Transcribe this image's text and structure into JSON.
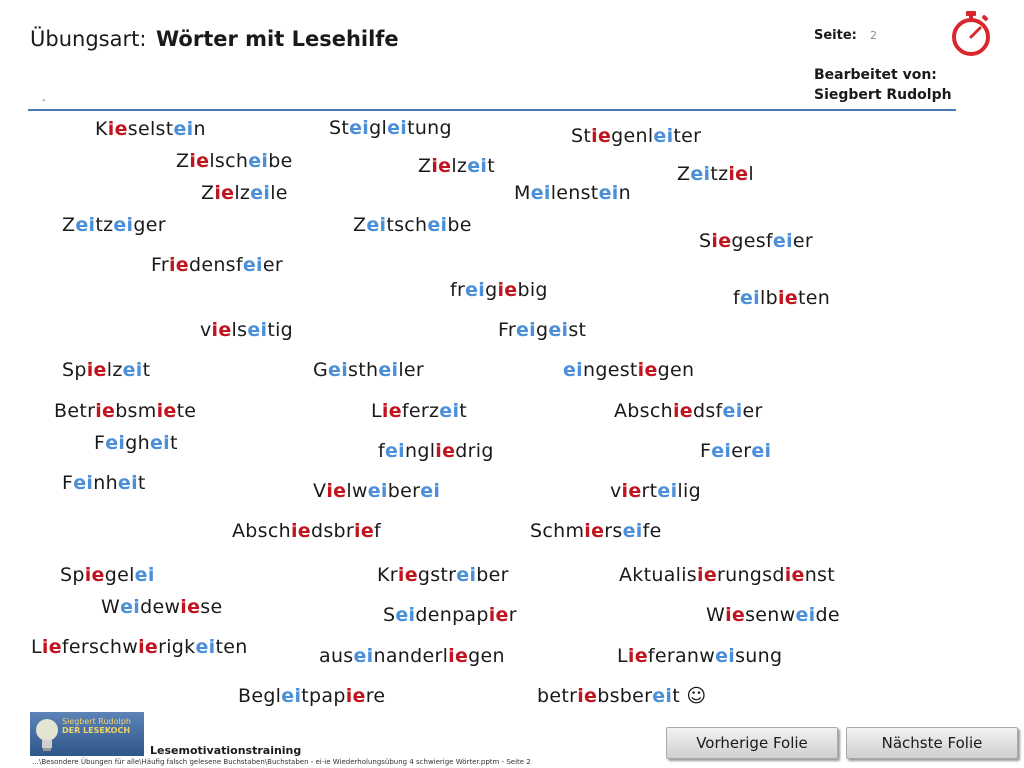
{
  "header": {
    "exercise_label": "Übungsart:",
    "exercise_value": "Wörter mit Lesehilfe",
    "page_label": "Seite:",
    "page_number": "2",
    "editor_label": "Bearbeitet von:",
    "editor_name": "Siegbert Rudolph",
    "dash": "-"
  },
  "colors": {
    "ie": "#c0141e",
    "ei": "#4a8fd8",
    "rule": "#4a79b8",
    "timer": "#d9272e"
  },
  "icons": {
    "timer": "stopwatch-icon",
    "logo": "lightbulb-logo",
    "smiley": "smiley-icon"
  },
  "words": [
    {
      "parts": [
        {
          "t": "K",
          "c": ""
        },
        {
          "t": "ie",
          "c": "ie"
        },
        {
          "t": "selst",
          "c": ""
        },
        {
          "t": "ei",
          "c": "ei"
        },
        {
          "t": "n",
          "c": ""
        }
      ]
    },
    {
      "parts": [
        {
          "t": "St",
          "c": ""
        },
        {
          "t": "ei",
          "c": "ei"
        },
        {
          "t": "gl",
          "c": ""
        },
        {
          "t": "ei",
          "c": "ei"
        },
        {
          "t": "tung",
          "c": ""
        }
      ]
    },
    {
      "parts": [
        {
          "t": "St",
          "c": ""
        },
        {
          "t": "ie",
          "c": "ie"
        },
        {
          "t": "genl",
          "c": ""
        },
        {
          "t": "ei",
          "c": "ei"
        },
        {
          "t": "ter",
          "c": ""
        }
      ]
    },
    {
      "parts": [
        {
          "t": "Z",
          "c": ""
        },
        {
          "t": "ie",
          "c": "ie"
        },
        {
          "t": "lsch",
          "c": ""
        },
        {
          "t": "ei",
          "c": "ei"
        },
        {
          "t": "be",
          "c": ""
        }
      ]
    },
    {
      "parts": [
        {
          "t": "Z",
          "c": ""
        },
        {
          "t": "ie",
          "c": "ie"
        },
        {
          "t": "lz",
          "c": ""
        },
        {
          "t": "ei",
          "c": "ei"
        },
        {
          "t": "t",
          "c": ""
        }
      ]
    },
    {
      "parts": [
        {
          "t": "Z",
          "c": ""
        },
        {
          "t": "ei",
          "c": "ei"
        },
        {
          "t": "tz",
          "c": ""
        },
        {
          "t": "ie",
          "c": "ie"
        },
        {
          "t": "l",
          "c": ""
        }
      ]
    },
    {
      "parts": [
        {
          "t": "Z",
          "c": ""
        },
        {
          "t": "ie",
          "c": "ie"
        },
        {
          "t": "lz",
          "c": ""
        },
        {
          "t": "ei",
          "c": "ei"
        },
        {
          "t": "le",
          "c": ""
        }
      ]
    },
    {
      "parts": [
        {
          "t": "M",
          "c": ""
        },
        {
          "t": "ei",
          "c": "ei"
        },
        {
          "t": "lenst",
          "c": ""
        },
        {
          "t": "ei",
          "c": "ei"
        },
        {
          "t": "n",
          "c": ""
        }
      ]
    },
    {
      "parts": [
        {
          "t": "Z",
          "c": ""
        },
        {
          "t": "ei",
          "c": "ei"
        },
        {
          "t": "tz",
          "c": ""
        },
        {
          "t": "ei",
          "c": "ei"
        },
        {
          "t": "ger",
          "c": ""
        }
      ]
    },
    {
      "parts": [
        {
          "t": "Z",
          "c": ""
        },
        {
          "t": "ei",
          "c": "ei"
        },
        {
          "t": "tsch",
          "c": ""
        },
        {
          "t": "ei",
          "c": "ei"
        },
        {
          "t": "be",
          "c": ""
        }
      ]
    },
    {
      "parts": [
        {
          "t": "S",
          "c": ""
        },
        {
          "t": "ie",
          "c": "ie"
        },
        {
          "t": "gesf",
          "c": ""
        },
        {
          "t": "ei",
          "c": "ei"
        },
        {
          "t": "er",
          "c": ""
        }
      ]
    },
    {
      "parts": [
        {
          "t": "Fr",
          "c": ""
        },
        {
          "t": "ie",
          "c": "ie"
        },
        {
          "t": "densf",
          "c": ""
        },
        {
          "t": "ei",
          "c": "ei"
        },
        {
          "t": "er",
          "c": ""
        }
      ]
    },
    {
      "parts": [
        {
          "t": "fr",
          "c": ""
        },
        {
          "t": "ei",
          "c": "ei"
        },
        {
          "t": "g",
          "c": ""
        },
        {
          "t": "ie",
          "c": "ie"
        },
        {
          "t": "big",
          "c": ""
        }
      ]
    },
    {
      "parts": [
        {
          "t": "f",
          "c": ""
        },
        {
          "t": "ei",
          "c": "ei"
        },
        {
          "t": "lb",
          "c": ""
        },
        {
          "t": "ie",
          "c": "ie"
        },
        {
          "t": "ten",
          "c": ""
        }
      ]
    },
    {
      "parts": [
        {
          "t": "v",
          "c": ""
        },
        {
          "t": "ie",
          "c": "ie"
        },
        {
          "t": "ls",
          "c": ""
        },
        {
          "t": "ei",
          "c": "ei"
        },
        {
          "t": "tig",
          "c": ""
        }
      ]
    },
    {
      "parts": [
        {
          "t": "Fr",
          "c": ""
        },
        {
          "t": "ei",
          "c": "ei"
        },
        {
          "t": "g",
          "c": ""
        },
        {
          "t": "ei",
          "c": "ei"
        },
        {
          "t": "st",
          "c": ""
        }
      ]
    },
    {
      "parts": [
        {
          "t": "Sp",
          "c": ""
        },
        {
          "t": "ie",
          "c": "ie"
        },
        {
          "t": "lz",
          "c": ""
        },
        {
          "t": "ei",
          "c": "ei"
        },
        {
          "t": "t",
          "c": ""
        }
      ]
    },
    {
      "parts": [
        {
          "t": "G",
          "c": ""
        },
        {
          "t": "ei",
          "c": "ei"
        },
        {
          "t": "sth",
          "c": ""
        },
        {
          "t": "ei",
          "c": "ei"
        },
        {
          "t": "ler",
          "c": ""
        }
      ]
    },
    {
      "parts": [
        {
          "t": "ei",
          "c": "ei"
        },
        {
          "t": "ngest",
          "c": ""
        },
        {
          "t": "ie",
          "c": "ie"
        },
        {
          "t": "gen",
          "c": ""
        }
      ]
    },
    {
      "parts": [
        {
          "t": "Betr",
          "c": ""
        },
        {
          "t": "ie",
          "c": "ie"
        },
        {
          "t": "bsm",
          "c": ""
        },
        {
          "t": "ie",
          "c": "ie"
        },
        {
          "t": "te",
          "c": ""
        }
      ]
    },
    {
      "parts": [
        {
          "t": "L",
          "c": ""
        },
        {
          "t": "ie",
          "c": "ie"
        },
        {
          "t": "ferz",
          "c": ""
        },
        {
          "t": "ei",
          "c": "ei"
        },
        {
          "t": "t",
          "c": ""
        }
      ]
    },
    {
      "parts": [
        {
          "t": "Absch",
          "c": ""
        },
        {
          "t": "ie",
          "c": "ie"
        },
        {
          "t": "dsf",
          "c": ""
        },
        {
          "t": "ei",
          "c": "ei"
        },
        {
          "t": "er",
          "c": ""
        }
      ]
    },
    {
      "parts": [
        {
          "t": "F",
          "c": ""
        },
        {
          "t": "ei",
          "c": "ei"
        },
        {
          "t": "gh",
          "c": ""
        },
        {
          "t": "ei",
          "c": "ei"
        },
        {
          "t": "t",
          "c": ""
        }
      ]
    },
    {
      "parts": [
        {
          "t": "f",
          "c": ""
        },
        {
          "t": "ei",
          "c": "ei"
        },
        {
          "t": "ngl",
          "c": ""
        },
        {
          "t": "ie",
          "c": "ie"
        },
        {
          "t": "drig",
          "c": ""
        }
      ]
    },
    {
      "parts": [
        {
          "t": "F",
          "c": ""
        },
        {
          "t": "ei",
          "c": "ei"
        },
        {
          "t": "er",
          "c": ""
        },
        {
          "t": "ei",
          "c": "ei"
        }
      ]
    },
    {
      "parts": [
        {
          "t": "F",
          "c": ""
        },
        {
          "t": "ei",
          "c": "ei"
        },
        {
          "t": "nh",
          "c": ""
        },
        {
          "t": "ei",
          "c": "ei"
        },
        {
          "t": "t",
          "c": ""
        }
      ]
    },
    {
      "parts": [
        {
          "t": "V",
          "c": ""
        },
        {
          "t": "ie",
          "c": "ie"
        },
        {
          "t": "lw",
          "c": ""
        },
        {
          "t": "ei",
          "c": "ei"
        },
        {
          "t": "ber",
          "c": ""
        },
        {
          "t": "ei",
          "c": "ei"
        }
      ]
    },
    {
      "parts": [
        {
          "t": "v",
          "c": ""
        },
        {
          "t": "ie",
          "c": "ie"
        },
        {
          "t": "rt",
          "c": ""
        },
        {
          "t": "ei",
          "c": "ei"
        },
        {
          "t": "lig",
          "c": ""
        }
      ]
    },
    {
      "parts": [
        {
          "t": "Absch",
          "c": ""
        },
        {
          "t": "ie",
          "c": "ie"
        },
        {
          "t": "dsbr",
          "c": ""
        },
        {
          "t": "ie",
          "c": "ie"
        },
        {
          "t": "f",
          "c": ""
        }
      ]
    },
    {
      "parts": [
        {
          "t": "Schm",
          "c": ""
        },
        {
          "t": "ie",
          "c": "ie"
        },
        {
          "t": "rs",
          "c": ""
        },
        {
          "t": "ei",
          "c": "ei"
        },
        {
          "t": "fe",
          "c": ""
        }
      ]
    },
    {
      "parts": [
        {
          "t": "Sp",
          "c": ""
        },
        {
          "t": "ie",
          "c": "ie"
        },
        {
          "t": "gel",
          "c": ""
        },
        {
          "t": "ei",
          "c": "ei"
        }
      ]
    },
    {
      "parts": [
        {
          "t": "Kr",
          "c": ""
        },
        {
          "t": "ie",
          "c": "ie"
        },
        {
          "t": "gstr",
          "c": ""
        },
        {
          "t": "ei",
          "c": "ei"
        },
        {
          "t": "ber",
          "c": ""
        }
      ]
    },
    {
      "parts": [
        {
          "t": "Aktualis",
          "c": ""
        },
        {
          "t": "ie",
          "c": "ie"
        },
        {
          "t": "rungsd",
          "c": ""
        },
        {
          "t": "ie",
          "c": "ie"
        },
        {
          "t": "nst",
          "c": ""
        }
      ]
    },
    {
      "parts": [
        {
          "t": "W",
          "c": ""
        },
        {
          "t": "ei",
          "c": "ei"
        },
        {
          "t": "dew",
          "c": ""
        },
        {
          "t": "ie",
          "c": "ie"
        },
        {
          "t": "se",
          "c": ""
        }
      ]
    },
    {
      "parts": [
        {
          "t": "S",
          "c": ""
        },
        {
          "t": "ei",
          "c": "ei"
        },
        {
          "t": "denpap",
          "c": ""
        },
        {
          "t": "ie",
          "c": "ie"
        },
        {
          "t": "r",
          "c": ""
        }
      ]
    },
    {
      "parts": [
        {
          "t": "W",
          "c": ""
        },
        {
          "t": "ie",
          "c": "ie"
        },
        {
          "t": "senw",
          "c": ""
        },
        {
          "t": "ei",
          "c": "ei"
        },
        {
          "t": "de",
          "c": ""
        }
      ]
    },
    {
      "parts": [
        {
          "t": "L",
          "c": ""
        },
        {
          "t": "ie",
          "c": "ie"
        },
        {
          "t": "ferschw",
          "c": ""
        },
        {
          "t": "ie",
          "c": "ie"
        },
        {
          "t": "rigk",
          "c": ""
        },
        {
          "t": "ei",
          "c": "ei"
        },
        {
          "t": "ten",
          "c": ""
        }
      ]
    },
    {
      "parts": [
        {
          "t": "aus",
          "c": ""
        },
        {
          "t": "ei",
          "c": "ei"
        },
        {
          "t": "nanderl",
          "c": ""
        },
        {
          "t": "ie",
          "c": "ie"
        },
        {
          "t": "gen",
          "c": ""
        }
      ]
    },
    {
      "parts": [
        {
          "t": "L",
          "c": ""
        },
        {
          "t": "ie",
          "c": "ie"
        },
        {
          "t": "feranw",
          "c": ""
        },
        {
          "t": "ei",
          "c": "ei"
        },
        {
          "t": "sung",
          "c": ""
        }
      ]
    },
    {
      "parts": [
        {
          "t": "Begl",
          "c": ""
        },
        {
          "t": "ei",
          "c": "ei"
        },
        {
          "t": "tpap",
          "c": ""
        },
        {
          "t": "ie",
          "c": "ie"
        },
        {
          "t": "re",
          "c": ""
        }
      ]
    },
    {
      "parts": [
        {
          "t": "betr",
          "c": ""
        },
        {
          "t": "ie",
          "c": "ie"
        },
        {
          "t": "bsber",
          "c": ""
        },
        {
          "t": "ei",
          "c": "ei"
        },
        {
          "t": "t ☺",
          "c": ""
        }
      ]
    }
  ],
  "logo": {
    "line1": "Siegbert Rudolph",
    "line2": "DER LESEKOCH"
  },
  "footer": {
    "title": "Lesemotivationstraining",
    "path": "…\\Besondere Übungen für alle\\Häufig falsch gelesene Buchstaben\\Buchstaben - ei-ie Wiederholungsübung 4 schwierige Wörter.pptm - Seite 2"
  },
  "nav": {
    "prev": "Vorherige Folie",
    "next": "Nächste Folie"
  }
}
